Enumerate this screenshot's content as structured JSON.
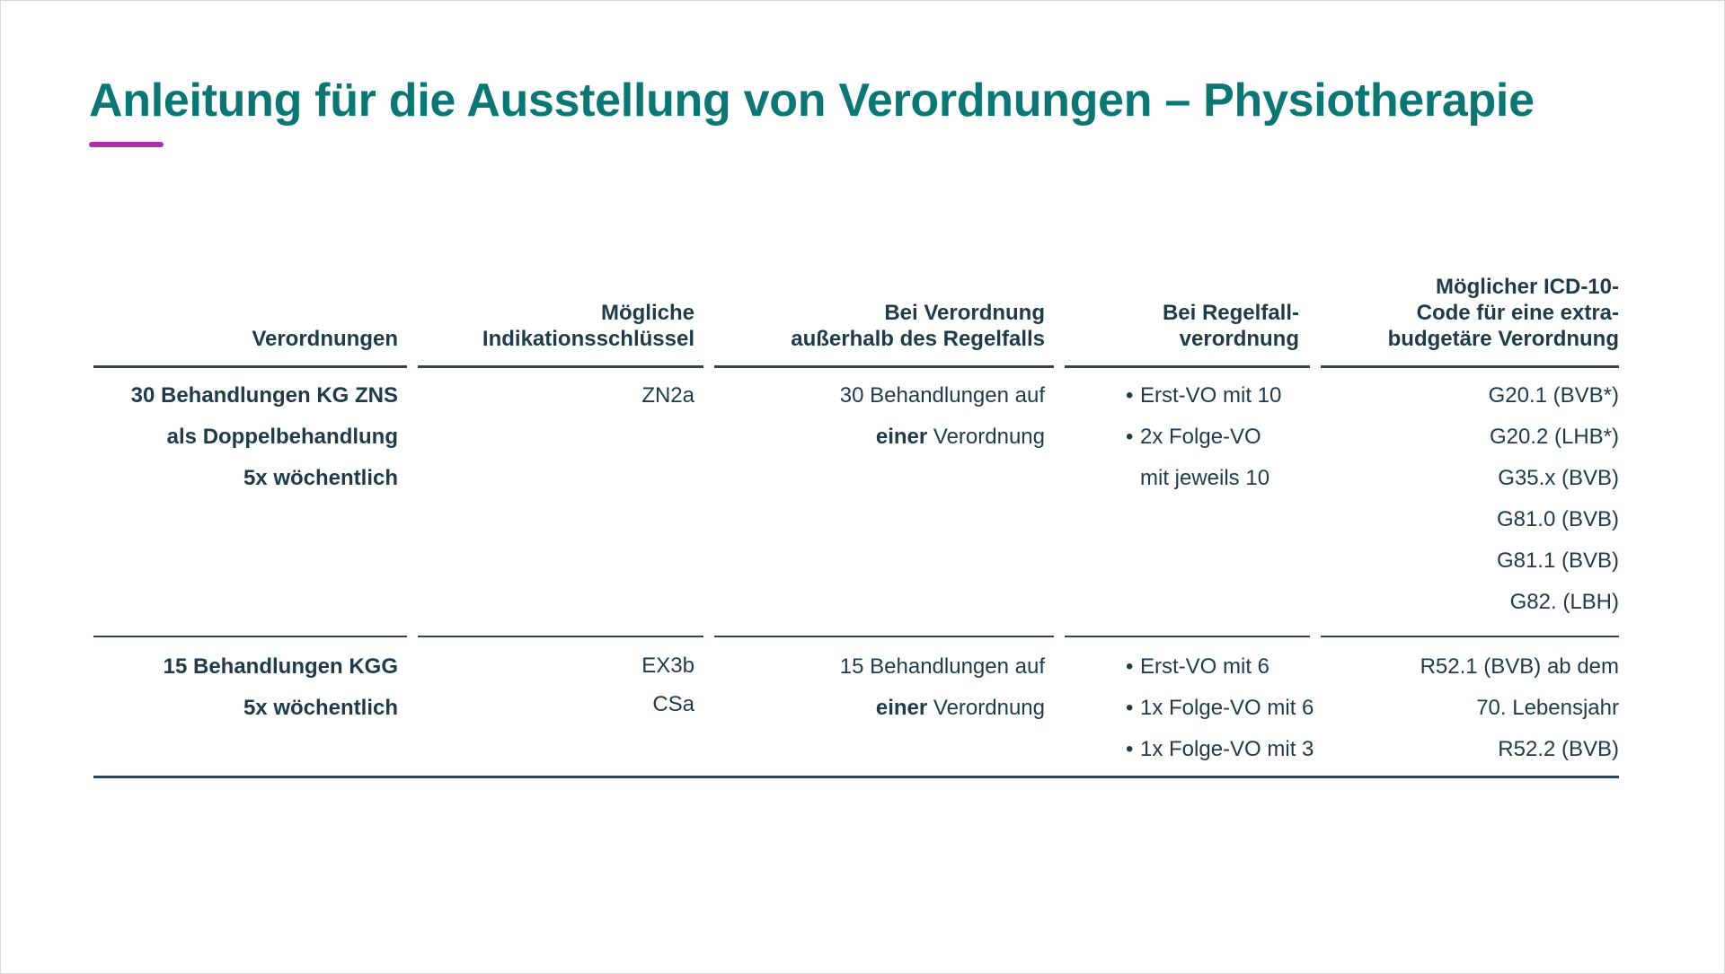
{
  "title": "Anleitung für die Ausstellung von Verordnungen – Physiotherapie",
  "colors": {
    "title": "#0a7775",
    "accent": "#b52aa8",
    "text": "#1f3a4a",
    "rule": "#2e4552"
  },
  "table": {
    "headers": [
      "Verordnungen",
      "Mögliche\nIndikationsschlüssel",
      "Bei Verordnung\naußerhalb des Regelfalls",
      "Bei Regelfall-\nverordnung",
      "Möglicher ICD-10-\nCode für eine extra-\nbudgetäre Verordnung"
    ],
    "rows": [
      {
        "verordnungen": [
          "30 Behandlungen KG ZNS",
          "als Doppelbehandlung",
          "5x wöchentlich"
        ],
        "indikation": [
          "ZN2a"
        ],
        "ausserhalb": {
          "line1": "30 Behandlungen auf",
          "line2_bold": "einer",
          "line2_rest": " Verordnung"
        },
        "regelfall": [
          {
            "bullet": true,
            "text": "Erst-VO mit 10"
          },
          {
            "bullet": true,
            "text": "2x Folge-VO"
          },
          {
            "bullet": false,
            "text": "mit jeweils 10"
          }
        ],
        "icd": [
          "G20.1 (BVB*)",
          "G20.2 (LHB*)",
          "G35.x (BVB)",
          "G81.0 (BVB)",
          "G81.1 (BVB)",
          "G82. (LBH)"
        ]
      },
      {
        "verordnungen": [
          "15 Behandlungen KGG",
          "5x wöchentlich"
        ],
        "indikation": [
          "EX3b",
          "CSa"
        ],
        "ausserhalb": {
          "line1": "15 Behandlungen auf",
          "line2_bold": "einer",
          "line2_rest": " Verordnung"
        },
        "regelfall": [
          {
            "bullet": true,
            "text": "Erst-VO mit 6"
          },
          {
            "bullet": true,
            "text": "1x Folge-VO mit 6"
          },
          {
            "bullet": true,
            "text": "1x Folge-VO mit 3"
          }
        ],
        "icd": [
          "R52.1 (BVB) ab dem",
          "70. Lebensjahr",
          "R52.2 (BVB)"
        ]
      }
    ]
  }
}
